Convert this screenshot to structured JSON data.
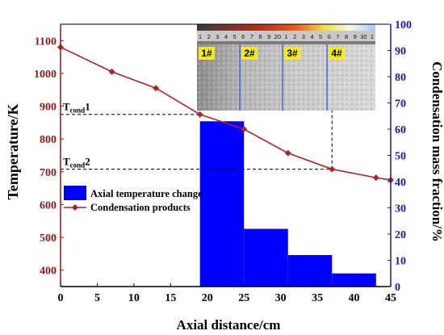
{
  "chart_data": {
    "type": "bar+line",
    "xlabel": "Axial distance/cm",
    "ylabel_left": "Temperature/K",
    "ylabel_right": "Condensation mass fraction/%",
    "xlim": [
      0,
      45
    ],
    "ylim_left": [
      350,
      1150
    ],
    "ylim_right": [
      0,
      100
    ],
    "x_ticks": [
      "0",
      "5",
      "10",
      "15",
      "20",
      "25",
      "30",
      "35",
      "40",
      "45"
    ],
    "y_left_ticks": [
      "400",
      "500",
      "600",
      "700",
      "800",
      "900",
      "1000",
      "1100"
    ],
    "y_right_ticks": [
      "0",
      "10",
      "20",
      "30",
      "40",
      "50",
      "60",
      "70",
      "80",
      "90",
      "100"
    ],
    "bars": {
      "name": "Axial temperature change",
      "axis": "right",
      "color": "#0000ff",
      "bins": [
        {
          "x0": 19,
          "x1": 25,
          "value": 63
        },
        {
          "x0": 25,
          "x1": 31,
          "value": 22
        },
        {
          "x0": 31,
          "x1": 37,
          "value": 12
        },
        {
          "x0": 37,
          "x1": 43,
          "value": 5
        }
      ]
    },
    "line": {
      "name": "Condensation products",
      "axis": "left",
      "color": "#b22222",
      "x": [
        0,
        7,
        13,
        19,
        25,
        31,
        37,
        43,
        45
      ],
      "y": [
        1080,
        1005,
        955,
        875,
        830,
        757,
        708,
        682,
        675
      ]
    },
    "annotations": [
      {
        "main": "T",
        "sub": "cond",
        "suffix": "1",
        "y": 875
      },
      {
        "main": "T",
        "sub": "cond",
        "suffix": "2",
        "y": 708
      }
    ],
    "legend_position": "lower-left",
    "photo_inset": {
      "labels": [
        "1#",
        "2#",
        "3#",
        "4#"
      ],
      "ruler_numbers": [
        "1",
        "2",
        "3",
        "4",
        "5",
        "6",
        "7",
        "8",
        "9",
        "20",
        "1",
        "2",
        "3",
        "4",
        "5",
        "6",
        "7",
        "8",
        "9",
        "30",
        "1"
      ]
    }
  }
}
